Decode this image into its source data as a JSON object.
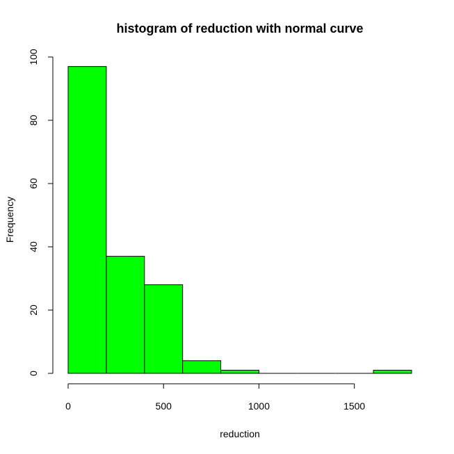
{
  "chart_data": {
    "type": "bar",
    "title": "histogram of reduction with normal curve",
    "xlabel": "reduction",
    "ylabel": "Frequency",
    "bar_color": "#00ff00",
    "border_color": "#000000",
    "bins": [
      {
        "start": 0,
        "end": 200,
        "count": 97
      },
      {
        "start": 200,
        "end": 400,
        "count": 37
      },
      {
        "start": 400,
        "end": 600,
        "count": 28
      },
      {
        "start": 600,
        "end": 800,
        "count": 4
      },
      {
        "start": 800,
        "end": 1000,
        "count": 1
      },
      {
        "start": 1000,
        "end": 1200,
        "count": 0
      },
      {
        "start": 1200,
        "end": 1400,
        "count": 0
      },
      {
        "start": 1400,
        "end": 1600,
        "count": 0
      },
      {
        "start": 1600,
        "end": 1800,
        "count": 1
      }
    ],
    "xlim": [
      0,
      1800
    ],
    "ylim": [
      0,
      100
    ],
    "x_ticks": [
      0,
      500,
      1000,
      1500
    ],
    "y_ticks": [
      0,
      20,
      40,
      60,
      80,
      100
    ],
    "grid": false
  }
}
